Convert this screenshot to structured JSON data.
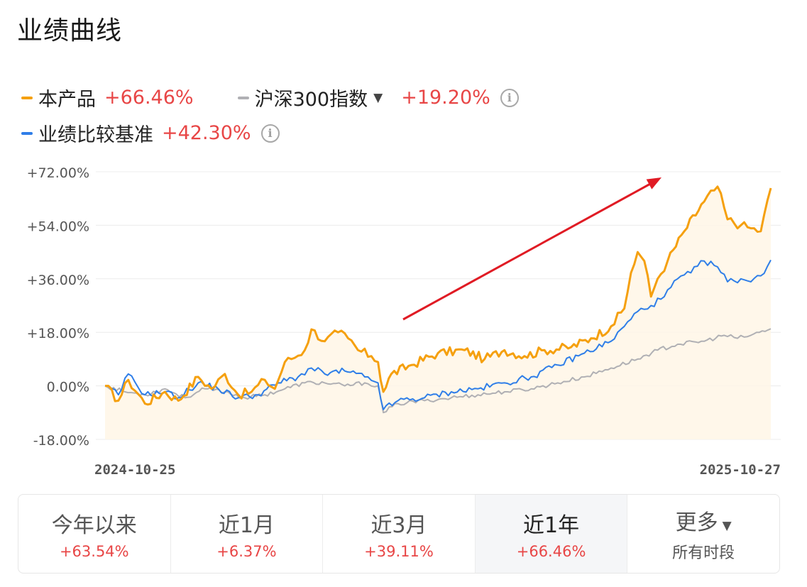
{
  "title": "业绩曲线",
  "legend": [
    {
      "name": "本产品",
      "value": "+66.46%",
      "color": "#f5a00f"
    },
    {
      "name": "沪深300指数",
      "value": "+19.20%",
      "color": "#b0b0b4",
      "dropdown": "▼",
      "info": "i"
    },
    {
      "name": "业绩比较基准",
      "value": "+42.30%",
      "color": "#2f7ee8",
      "info": "i"
    }
  ],
  "chart_data": {
    "type": "line",
    "x_start": "2024-10-25",
    "x_end": "2025-10-27",
    "xlabels": [
      "2024-10-25",
      "2025-10-27"
    ],
    "yticks": [
      "+72.00%",
      "+54.00%",
      "+36.00%",
      "+18.00%",
      "0.00%",
      "-18.00%"
    ],
    "ylim": [
      -18,
      72
    ],
    "grid": true,
    "annotation": "red arrow indicating upward trend",
    "series": [
      {
        "name": "本产品",
        "color": "#f5a00f",
        "area_fill": true,
        "points": [
          [
            0,
            0
          ],
          [
            0.02,
            -5
          ],
          [
            0.035,
            2
          ],
          [
            0.06,
            -6
          ],
          [
            0.09,
            -2
          ],
          [
            0.11,
            -5
          ],
          [
            0.14,
            3
          ],
          [
            0.16,
            -1
          ],
          [
            0.18,
            4
          ],
          [
            0.2,
            -3
          ],
          [
            0.22,
            -2
          ],
          [
            0.24,
            2
          ],
          [
            0.255,
            -1
          ],
          [
            0.27,
            8
          ],
          [
            0.28,
            9
          ],
          [
            0.3,
            12
          ],
          [
            0.31,
            19
          ],
          [
            0.33,
            15
          ],
          [
            0.35,
            18
          ],
          [
            0.365,
            16
          ],
          [
            0.38,
            12
          ],
          [
            0.4,
            10
          ],
          [
            0.41,
            8
          ],
          [
            0.418,
            -2
          ],
          [
            0.43,
            4
          ],
          [
            0.46,
            7
          ],
          [
            0.5,
            11
          ],
          [
            0.54,
            12
          ],
          [
            0.57,
            9
          ],
          [
            0.6,
            12
          ],
          [
            0.63,
            10
          ],
          [
            0.66,
            12
          ],
          [
            0.7,
            13
          ],
          [
            0.73,
            16
          ],
          [
            0.76,
            20
          ],
          [
            0.78,
            26
          ],
          [
            0.79,
            38
          ],
          [
            0.8,
            45
          ],
          [
            0.81,
            42
          ],
          [
            0.82,
            30
          ],
          [
            0.83,
            36
          ],
          [
            0.845,
            42
          ],
          [
            0.87,
            52
          ],
          [
            0.9,
            62
          ],
          [
            0.92,
            67
          ],
          [
            0.935,
            56
          ],
          [
            0.955,
            54
          ],
          [
            0.97,
            53
          ],
          [
            0.985,
            52
          ],
          [
            1,
            66.5
          ]
        ]
      },
      {
        "name": "沪深300指数",
        "color": "#b0b0b4",
        "area_fill": false,
        "points": [
          [
            0,
            0
          ],
          [
            0.03,
            -2
          ],
          [
            0.06,
            -3
          ],
          [
            0.09,
            -1
          ],
          [
            0.12,
            -4
          ],
          [
            0.15,
            -1
          ],
          [
            0.18,
            -2
          ],
          [
            0.21,
            -4
          ],
          [
            0.24,
            -3
          ],
          [
            0.27,
            -1
          ],
          [
            0.3,
            1
          ],
          [
            0.33,
            1
          ],
          [
            0.36,
            0
          ],
          [
            0.39,
            1
          ],
          [
            0.41,
            0
          ],
          [
            0.418,
            -9
          ],
          [
            0.44,
            -6
          ],
          [
            0.48,
            -5
          ],
          [
            0.52,
            -4
          ],
          [
            0.56,
            -3
          ],
          [
            0.6,
            -2
          ],
          [
            0.64,
            -1
          ],
          [
            0.68,
            1
          ],
          [
            0.72,
            3
          ],
          [
            0.76,
            6
          ],
          [
            0.8,
            9
          ],
          [
            0.83,
            12
          ],
          [
            0.86,
            14
          ],
          [
            0.9,
            15
          ],
          [
            0.93,
            17
          ],
          [
            0.95,
            16
          ],
          [
            0.97,
            17
          ],
          [
            1,
            19.2
          ]
        ]
      },
      {
        "name": "业绩比较基准",
        "color": "#2f7ee8",
        "area_fill": false,
        "points": [
          [
            0,
            0
          ],
          [
            0.02,
            -3
          ],
          [
            0.035,
            4
          ],
          [
            0.06,
            -3
          ],
          [
            0.09,
            -2
          ],
          [
            0.11,
            -4
          ],
          [
            0.14,
            1
          ],
          [
            0.17,
            -1
          ],
          [
            0.2,
            -4
          ],
          [
            0.23,
            -3
          ],
          [
            0.26,
            1
          ],
          [
            0.29,
            3
          ],
          [
            0.31,
            6
          ],
          [
            0.33,
            4
          ],
          [
            0.36,
            5
          ],
          [
            0.39,
            3
          ],
          [
            0.41,
            1
          ],
          [
            0.418,
            -8
          ],
          [
            0.44,
            -5
          ],
          [
            0.48,
            -4
          ],
          [
            0.52,
            -2
          ],
          [
            0.56,
            -1
          ],
          [
            0.6,
            1
          ],
          [
            0.64,
            3
          ],
          [
            0.68,
            7
          ],
          [
            0.72,
            11
          ],
          [
            0.76,
            15
          ],
          [
            0.78,
            20
          ],
          [
            0.8,
            25
          ],
          [
            0.82,
            27
          ],
          [
            0.84,
            30
          ],
          [
            0.86,
            36
          ],
          [
            0.88,
            38
          ],
          [
            0.9,
            42
          ],
          [
            0.92,
            40
          ],
          [
            0.935,
            35
          ],
          [
            0.955,
            36
          ],
          [
            0.97,
            35
          ],
          [
            0.985,
            37
          ],
          [
            1,
            42.3
          ]
        ]
      }
    ]
  },
  "tabs": [
    {
      "label": "今年以来",
      "value": "+63.54%",
      "active": false
    },
    {
      "label": "近1月",
      "value": "+6.37%",
      "active": false
    },
    {
      "label": "近3月",
      "value": "+39.11%",
      "active": false
    },
    {
      "label": "近1年",
      "value": "+66.46%",
      "active": true
    },
    {
      "label": "更多",
      "dropdown": "▼",
      "sub": "所有时段",
      "active": false
    }
  ]
}
